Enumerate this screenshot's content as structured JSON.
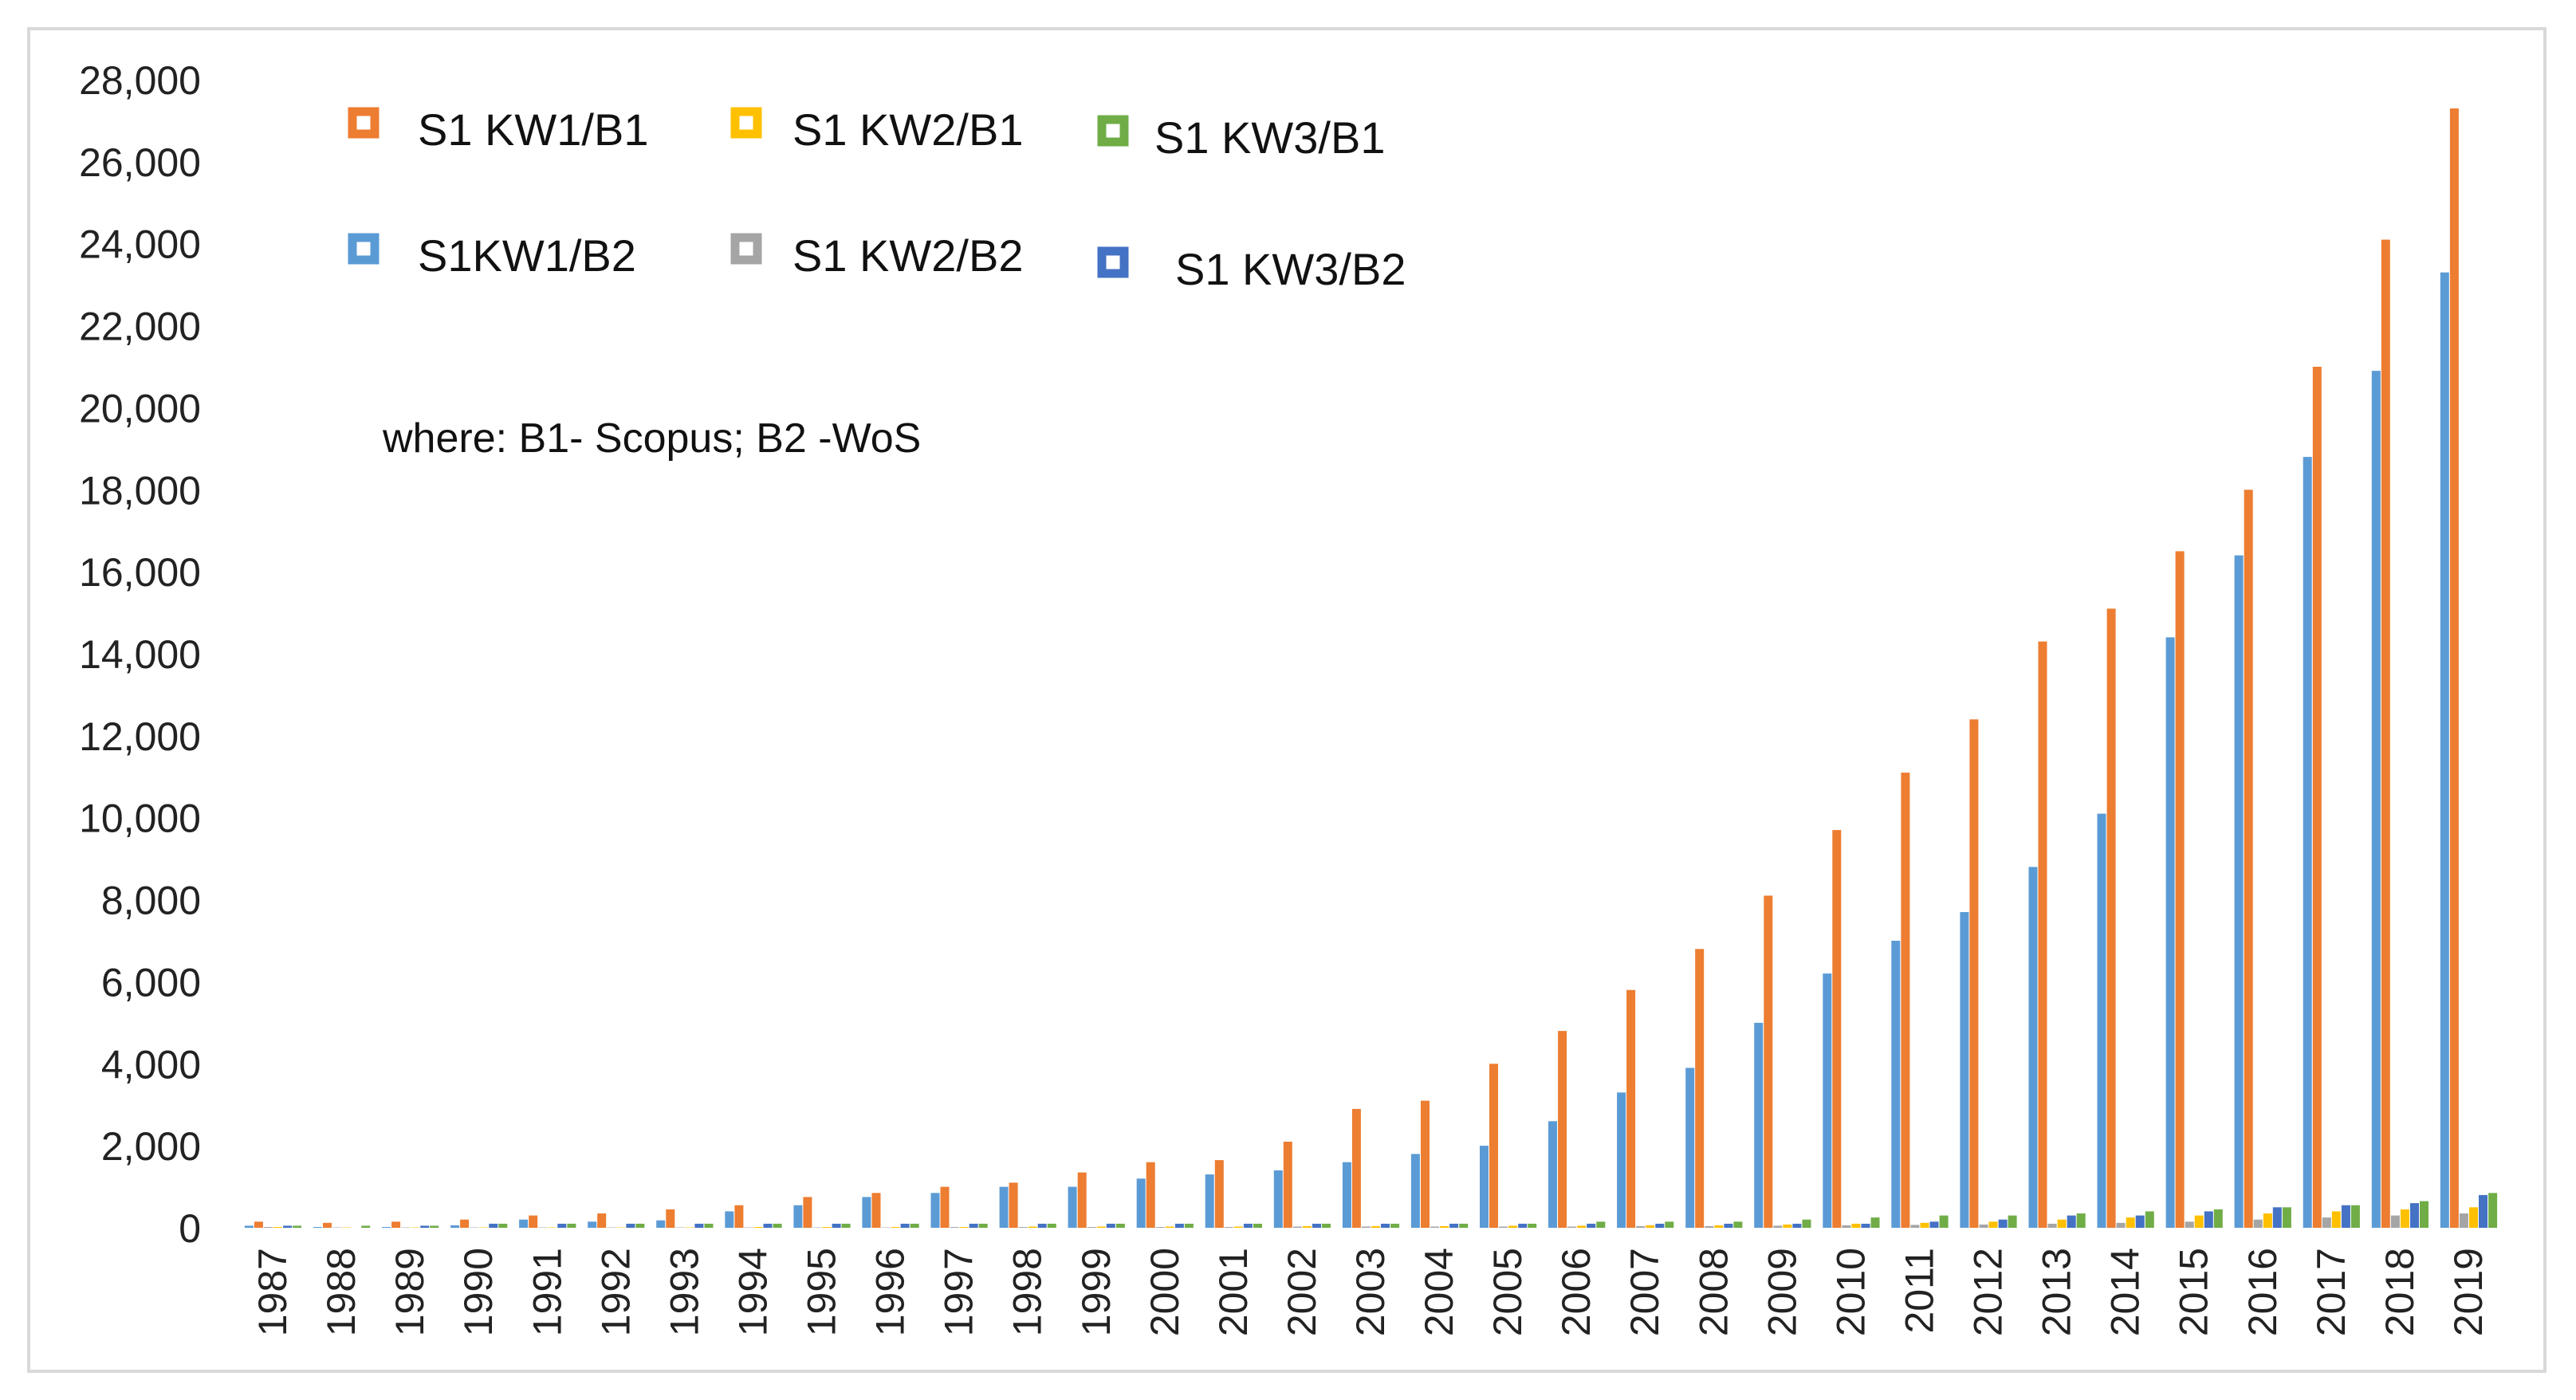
{
  "chart_data": {
    "type": "bar",
    "title": "",
    "xlabel": "",
    "ylabel": "",
    "ylim": [
      0,
      28000
    ],
    "yticks": [
      0,
      2000,
      4000,
      6000,
      8000,
      10000,
      12000,
      14000,
      16000,
      18000,
      20000,
      22000,
      24000,
      26000,
      28000
    ],
    "ytick_labels": [
      "0",
      "2,000",
      "4,000",
      "6,000",
      "8,000",
      "10,000",
      "12,000",
      "14,000",
      "16,000",
      "18,000",
      "20,000",
      "22,000",
      "24,000",
      "26,000",
      "28,000"
    ],
    "grid": false,
    "legend_position": "top-left",
    "note": "where: B1- Scopus; B2 -WoS",
    "categories": [
      "1987",
      "1988",
      "1989",
      "1990",
      "1991",
      "1992",
      "1993",
      "1994",
      "1995",
      "1996",
      "1997",
      "1998",
      "1999",
      "2000",
      "2001",
      "2002",
      "2003",
      "2004",
      "2005",
      "2006",
      "2007",
      "2008",
      "2009",
      "2010",
      "2011",
      "2012",
      "2013",
      "2014",
      "2015",
      "2016",
      "2017",
      "2018",
      "2019"
    ],
    "series": [
      {
        "name": "S1KW1/B2",
        "color": "#5b9bd5",
        "values": [
          50,
          20,
          20,
          60,
          200,
          150,
          180,
          400,
          550,
          750,
          850,
          1000,
          1000,
          1200,
          1300,
          1400,
          1600,
          1800,
          2000,
          2600,
          3300,
          3900,
          5000,
          6200,
          7000,
          7700,
          8800,
          10100,
          14400,
          16400,
          18800,
          20900,
          23300
        ]
      },
      {
        "name": "S1 KW1/B1",
        "color": "#ed7d31",
        "values": [
          150,
          120,
          150,
          200,
          300,
          350,
          450,
          550,
          750,
          850,
          1000,
          1100,
          1350,
          1600,
          1650,
          2100,
          2900,
          3100,
          4000,
          4800,
          5800,
          6800,
          8100,
          9700,
          11100,
          12400,
          14300,
          15100,
          16500,
          18000,
          21000,
          24100,
          27300
        ]
      },
      {
        "name": "S1 KW2/B2",
        "color": "#a5a5a5",
        "values": [
          20,
          10,
          10,
          10,
          10,
          10,
          10,
          10,
          10,
          10,
          20,
          20,
          20,
          20,
          20,
          30,
          30,
          30,
          30,
          30,
          40,
          40,
          50,
          60,
          70,
          80,
          100,
          120,
          150,
          200,
          250,
          300,
          350
        ]
      },
      {
        "name": "S1 KW2/B1",
        "color": "#ffc000",
        "values": [
          20,
          10,
          10,
          10,
          10,
          10,
          10,
          20,
          20,
          20,
          20,
          30,
          30,
          30,
          30,
          40,
          40,
          40,
          50,
          50,
          60,
          60,
          80,
          100,
          120,
          150,
          200,
          250,
          300,
          350,
          400,
          450,
          500
        ]
      },
      {
        "name": "S1 KW3/B2",
        "color": "#4472c4",
        "values": [
          50,
          0,
          50,
          100,
          100,
          100,
          100,
          100,
          100,
          100,
          100,
          100,
          100,
          100,
          100,
          100,
          100,
          100,
          100,
          100,
          100,
          100,
          100,
          100,
          150,
          200,
          300,
          300,
          400,
          500,
          550,
          600,
          800
        ]
      },
      {
        "name": "S1 KW3/B1",
        "color": "#70ad47",
        "values": [
          50,
          50,
          50,
          100,
          100,
          100,
          100,
          100,
          100,
          100,
          100,
          100,
          100,
          100,
          100,
          100,
          100,
          100,
          100,
          150,
          150,
          150,
          200,
          250,
          300,
          300,
          350,
          400,
          450,
          500,
          550,
          650,
          850
        ]
      }
    ],
    "legend": [
      {
        "label": "S1 KW1/B1",
        "color": "#ed7d31"
      },
      {
        "label": "S1 KW2/B1",
        "color": "#ffc000"
      },
      {
        "label": "S1 KW3/B1",
        "color": "#70ad47"
      },
      {
        "label": "S1KW1/B2",
        "color": "#5b9bd5"
      },
      {
        "label": "S1 KW2/B2",
        "color": "#a5a5a5"
      },
      {
        "label": "S1 KW3/B2",
        "color": "#4472c4"
      }
    ]
  }
}
